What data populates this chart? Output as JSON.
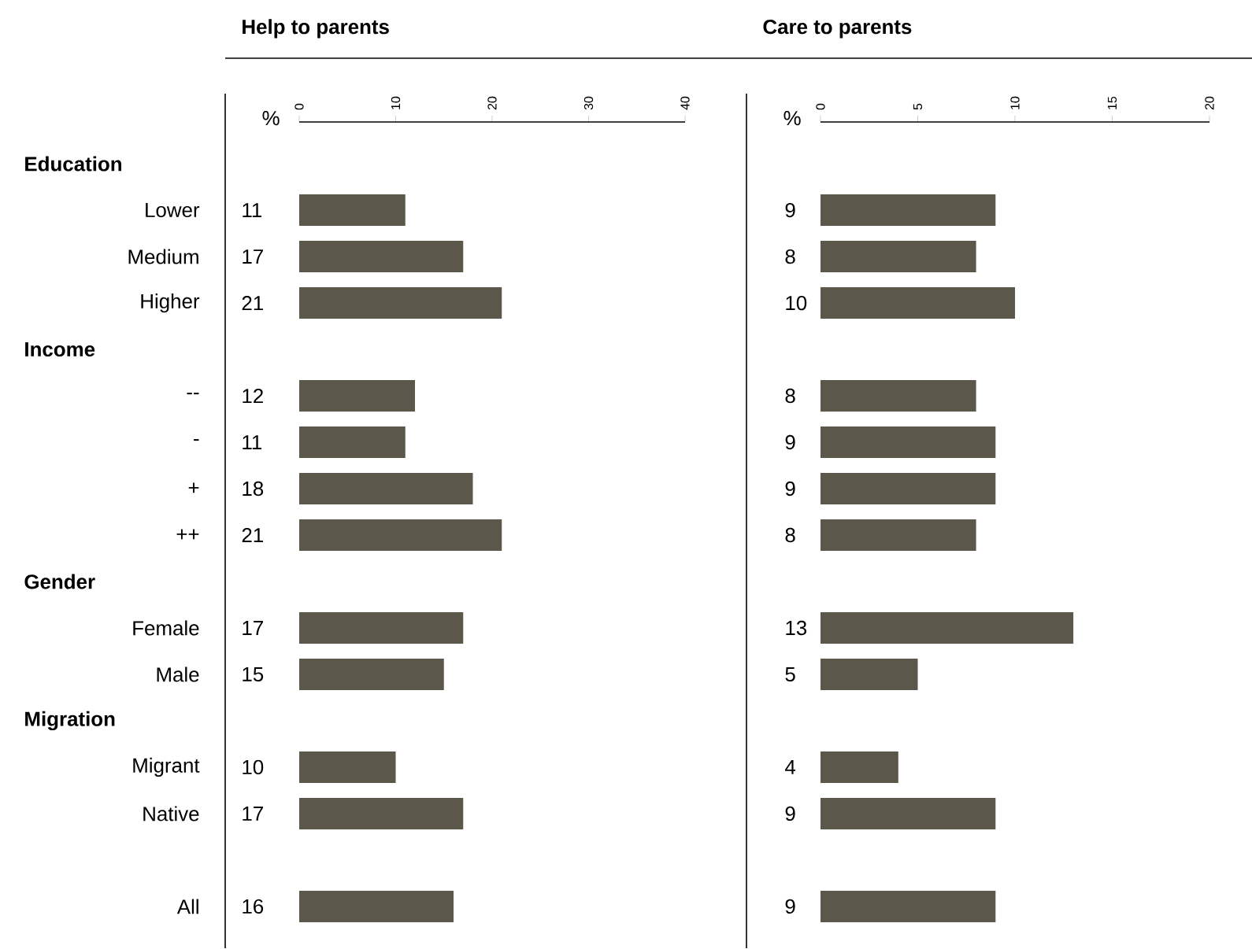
{
  "chart_data": [
    {
      "type": "bar",
      "orientation": "horizontal",
      "title": "Help to parents",
      "xlabel": "%",
      "categories": [
        null,
        "Lower",
        "Medium",
        "Higher",
        null,
        "--",
        "-",
        "+",
        "++",
        null,
        "Female",
        "Male",
        null,
        "Migrant",
        "Native",
        null,
        "All"
      ],
      "values": [
        null,
        11,
        17,
        21,
        null,
        12,
        11,
        18,
        21,
        null,
        17,
        15,
        null,
        10,
        17,
        null,
        16
      ],
      "annotations": [
        "Education",
        "Income",
        "Gender",
        "Migration"
      ],
      "color": "#5b574b",
      "xlim": [
        0,
        40
      ],
      "xticks": [
        0,
        10,
        20,
        30,
        40
      ],
      "data_labels": true
    },
    {
      "type": "bar",
      "orientation": "horizontal",
      "title": "Care to parents",
      "xlabel": "%",
      "categories": [
        null,
        null,
        null,
        null,
        null,
        null,
        null,
        null,
        null,
        null,
        null,
        null,
        null,
        null,
        null,
        null,
        null
      ],
      "values": [
        null,
        9,
        8,
        10,
        null,
        8,
        9,
        9,
        8,
        null,
        13,
        5,
        null,
        4,
        9,
        null,
        9
      ],
      "color": "#5b574b",
      "xlim": [
        0,
        20
      ],
      "xticks": [
        0,
        5,
        10,
        15,
        20
      ],
      "data_labels": true
    }
  ]
}
